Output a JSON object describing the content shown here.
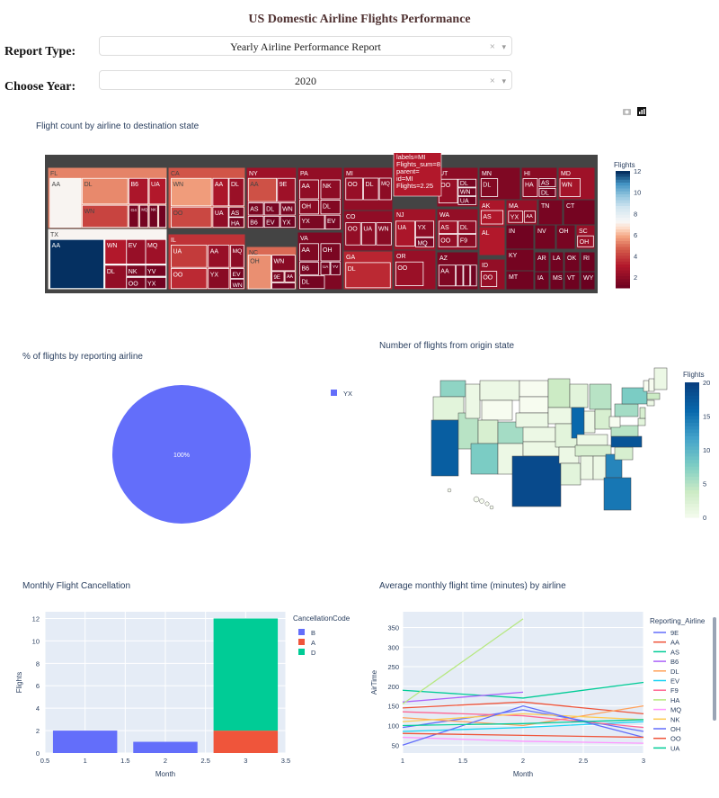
{
  "page_title": "US Domestic Airline Flights Performance",
  "controls": {
    "report_type_label": "Report Type:",
    "report_type_value": "Yearly Airline Performance Report",
    "year_label": "Choose Year:",
    "year_value": "2020",
    "clear_glyph": "×",
    "caret_glyph": "▾"
  },
  "chart_data": [
    {
      "type": "treemap",
      "title": "Flight count by airline to destination state",
      "colorbar": {
        "title": "Flights",
        "range": [
          1,
          12
        ],
        "ticks": [
          2,
          4,
          6,
          8,
          10,
          12
        ]
      },
      "hover": [
        "labels=MI",
        "Flights_sum=8",
        "parent=",
        "id=MI",
        "Flights=2.25"
      ],
      "states": [
        {
          "state": "FL",
          "airlines": [
            "AA",
            "DL",
            "B6",
            "UA",
            "WN",
            "G4",
            "MQ",
            "NK",
            "OH"
          ]
        },
        {
          "state": "TX",
          "airlines": [
            "AA",
            "WN",
            "EV",
            "MQ",
            "DL",
            "NK",
            "YV",
            "OO",
            "YX"
          ]
        },
        {
          "state": "CA",
          "airlines": [
            "WN",
            "AA",
            "DL",
            "OO",
            "UA",
            "AS",
            "HA"
          ]
        },
        {
          "state": "IL",
          "airlines": [
            "UA",
            "AA",
            "MQ",
            "OO",
            "YX",
            "EV",
            "WN"
          ]
        },
        {
          "state": "NY",
          "airlines": [
            "AA",
            "9E",
            "AS",
            "DL",
            "WN",
            "B6",
            "EV",
            "YX"
          ]
        },
        {
          "state": "NC",
          "airlines": [
            "OH",
            "WN",
            "9E",
            "AA",
            "OO"
          ]
        },
        {
          "state": "PA",
          "airlines": [
            "AA",
            "NK",
            "OH",
            "DL",
            "YX",
            "EV"
          ]
        },
        {
          "state": "VA",
          "airlines": [
            "AA",
            "OH",
            "B6",
            "UA",
            "YV",
            "DL"
          ]
        },
        {
          "state": "MI",
          "airlines": [
            "OO",
            "DL",
            "MQ"
          ]
        },
        {
          "state": "CO",
          "airlines": [
            "OO",
            "UA",
            "WN"
          ]
        },
        {
          "state": "GA",
          "airlines": [
            "DL"
          ]
        },
        {
          "state": "NJ",
          "airlines": [
            "UA",
            "YX",
            "MQ"
          ]
        },
        {
          "state": "OR",
          "airlines": [
            "OO"
          ]
        },
        {
          "state": "UT",
          "airlines": [
            "OO",
            "DL",
            "WN",
            "UA"
          ]
        },
        {
          "state": "WA",
          "airlines": [
            "AS",
            "DL",
            "OO",
            "F9"
          ]
        },
        {
          "state": "AZ",
          "airlines": [
            "AA",
            "OO",
            "UA",
            "WN"
          ]
        },
        {
          "state": "MN",
          "airlines": [
            "DL"
          ]
        },
        {
          "state": "HI",
          "airlines": [
            "HA",
            "AS",
            "DL"
          ]
        },
        {
          "state": "MD",
          "airlines": [
            "WN"
          ]
        },
        {
          "state": "AK",
          "airlines": [
            "AS"
          ]
        },
        {
          "state": "AL",
          "airlines": []
        },
        {
          "state": "ID",
          "airlines": [
            "OO"
          ]
        },
        {
          "state": "MA",
          "airlines": [
            "YX",
            "AA"
          ]
        },
        {
          "state": "TN",
          "airlines": []
        },
        {
          "state": "CT",
          "airlines": []
        },
        {
          "state": "IN",
          "airlines": []
        },
        {
          "state": "NV",
          "airlines": []
        },
        {
          "state": "OH",
          "airlines": []
        },
        {
          "state": "SC",
          "airlines": [
            "OH"
          ]
        },
        {
          "state": "KY",
          "airlines": []
        },
        {
          "state": "AR",
          "airlines": []
        },
        {
          "state": "LA",
          "airlines": []
        },
        {
          "state": "OK",
          "airlines": []
        },
        {
          "state": "RI",
          "airlines": []
        },
        {
          "state": "MT",
          "airlines": []
        },
        {
          "state": "IA",
          "airlines": []
        },
        {
          "state": "MS",
          "airlines": []
        },
        {
          "state": "VT",
          "airlines": []
        },
        {
          "state": "WY",
          "airlines": []
        }
      ]
    },
    {
      "type": "pie",
      "title": "% of flights by reporting airline",
      "labels": [
        "YX"
      ],
      "values": [
        100
      ],
      "slice_text": "100%",
      "colors": [
        "#636efa"
      ]
    },
    {
      "type": "choropleth",
      "title": "Number of flights from origin state",
      "colorbar": {
        "title": "Flights",
        "range": [
          0,
          20
        ],
        "ticks": [
          0,
          5,
          10,
          15,
          20
        ]
      },
      "values": {
        "CA": 17,
        "TX": 19,
        "IL": 16,
        "FL": 15,
        "NC": 18,
        "GA": 14,
        "WA": 7,
        "CO": 6,
        "NY": 8,
        "AZ": 8,
        "MI": 5,
        "MN": 4,
        "PA": 6,
        "VA": 5,
        "TN": 3,
        "OH": 3,
        "NV": 5,
        "UT": 3,
        "OR": 2,
        "MO": 2,
        "WI": 2,
        "MA": 4,
        "NJ": 3,
        "SC": 3,
        "IN": 1,
        "KY": 1,
        "AL": 1,
        "LA": 2,
        "OK": 1,
        "KS": 1,
        "NE": 1,
        "IA": 1,
        "ID": 1,
        "MT": 1,
        "WY": 0,
        "ND": 0,
        "SD": 0,
        "NM": 1,
        "AR": 1,
        "MS": 1,
        "ME": 1,
        "NH": 0,
        "VT": 0,
        "CT": 1,
        "WV": 0,
        "MD": 2
      }
    },
    {
      "type": "bar",
      "title": "Monthly Flight Cancellation",
      "xlabel": "Month",
      "ylabel": "Flights",
      "xlim": [
        0.5,
        3.5
      ],
      "ylim": [
        0,
        12.6
      ],
      "xticks": [
        "0.5",
        "1",
        "1.5",
        "2",
        "2.5",
        "3",
        "3.5"
      ],
      "yticks": [
        0,
        2,
        4,
        6,
        8,
        10,
        12
      ],
      "legend_title": "CancellationCode",
      "series": [
        {
          "name": "B",
          "color": "#636efa",
          "x": [
            1,
            2
          ],
          "values": [
            2,
            1
          ]
        },
        {
          "name": "A",
          "color": "#ef553b",
          "x": [
            3
          ],
          "values": [
            2
          ]
        },
        {
          "name": "D",
          "color": "#00cc96",
          "x": [
            3
          ],
          "values": [
            10
          ]
        }
      ]
    },
    {
      "type": "line",
      "title": "Average monthly flight time (minutes) by airline",
      "xlabel": "Month",
      "ylabel": "AirTime",
      "xlim": [
        1,
        3
      ],
      "ylim": [
        30,
        390
      ],
      "xticks": [
        "1",
        "1.5",
        "2",
        "2.5",
        "3"
      ],
      "yticks": [
        50,
        100,
        150,
        200,
        250,
        300,
        350
      ],
      "legend_title": "Reporting_Airline",
      "series": [
        {
          "name": "9E",
          "color": "#636efa",
          "x": [
            1,
            2,
            3
          ],
          "values": [
            95,
            140,
            85
          ]
        },
        {
          "name": "AA",
          "color": "#ef553b",
          "x": [
            1,
            2,
            3
          ],
          "values": [
            145,
            160,
            130
          ]
        },
        {
          "name": "AS",
          "color": "#00cc96",
          "x": [
            1,
            2,
            3
          ],
          "values": [
            190,
            170,
            210
          ]
        },
        {
          "name": "B6",
          "color": "#ab63fa",
          "x": [
            1,
            2
          ],
          "values": [
            160,
            185
          ]
        },
        {
          "name": "DL",
          "color": "#ffa15a",
          "x": [
            1,
            2,
            3
          ],
          "values": [
            120,
            100,
            150
          ]
        },
        {
          "name": "EV",
          "color": "#19d3f3",
          "x": [
            1,
            2,
            3
          ],
          "values": [
            85,
            95,
            110
          ]
        },
        {
          "name": "F9",
          "color": "#ff6692",
          "x": [
            1,
            2,
            3
          ],
          "values": [
            135,
            125,
            95
          ]
        },
        {
          "name": "HA",
          "color": "#b6e880",
          "x": [
            1,
            2
          ],
          "values": [
            155,
            372
          ]
        },
        {
          "name": "MQ",
          "color": "#ff97ff",
          "x": [
            1,
            2,
            3
          ],
          "values": [
            70,
            60,
            55
          ]
        },
        {
          "name": "NK",
          "color": "#fecb52",
          "x": [
            1,
            2,
            3
          ],
          "values": [
            110,
            130,
            115
          ]
        },
        {
          "name": "OH",
          "color": "#636efa",
          "x": [
            1,
            2,
            3
          ],
          "values": [
            50,
            150,
            70
          ]
        },
        {
          "name": "OO",
          "color": "#ef553b",
          "x": [
            1,
            2,
            3
          ],
          "values": [
            80,
            75,
            70
          ]
        },
        {
          "name": "UA",
          "color": "#00cc96",
          "x": [
            1,
            2,
            3
          ],
          "values": [
            100,
            105,
            115
          ]
        }
      ]
    }
  ]
}
